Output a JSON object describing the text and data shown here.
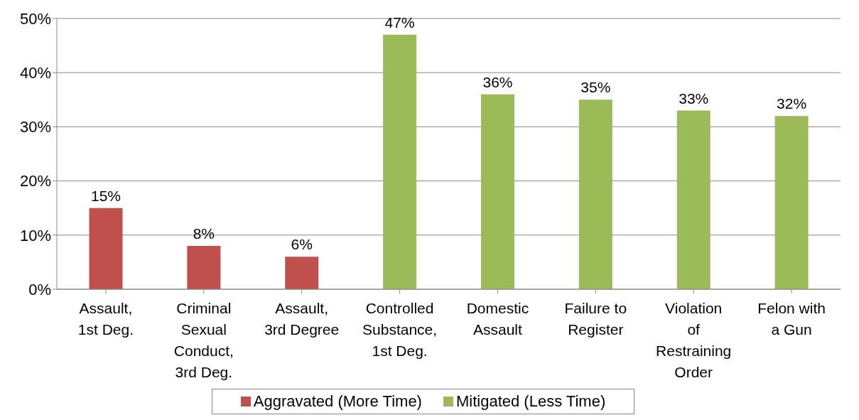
{
  "chart_data": {
    "type": "bar",
    "categories": [
      "Assault, 1st Deg.",
      "Criminal Sexual Conduct, 3rd Deg.",
      "Assault, 3rd Degree",
      "Controlled Substance, 1st Deg.",
      "Domestic Assault",
      "Failure to Register",
      "Violation of Restraining Order",
      "Felon with a Gun"
    ],
    "series": [
      {
        "name": "Aggravated (More Time)",
        "color": "#c0504d",
        "values": [
          15,
          8,
          6,
          null,
          null,
          null,
          null,
          null
        ],
        "value_labels": [
          "15%",
          "8%",
          "6%",
          null,
          null,
          null,
          null,
          null
        ]
      },
      {
        "name": "Mitigated (Less Time)",
        "color": "#9bbb59",
        "values": [
          null,
          null,
          null,
          47,
          36,
          35,
          33,
          32
        ],
        "value_labels": [
          null,
          null,
          null,
          "47%",
          "36%",
          "35%",
          "33%",
          "32%"
        ]
      }
    ],
    "ylim": [
      0,
      50
    ],
    "yticks": [
      {
        "value": 0,
        "label": "0%"
      },
      {
        "value": 10,
        "label": "10%"
      },
      {
        "value": 20,
        "label": "20%"
      },
      {
        "value": 30,
        "label": "30%"
      },
      {
        "value": 40,
        "label": "40%"
      },
      {
        "value": 50,
        "label": "50%"
      }
    ],
    "grid": "y",
    "legend": "bottom"
  }
}
